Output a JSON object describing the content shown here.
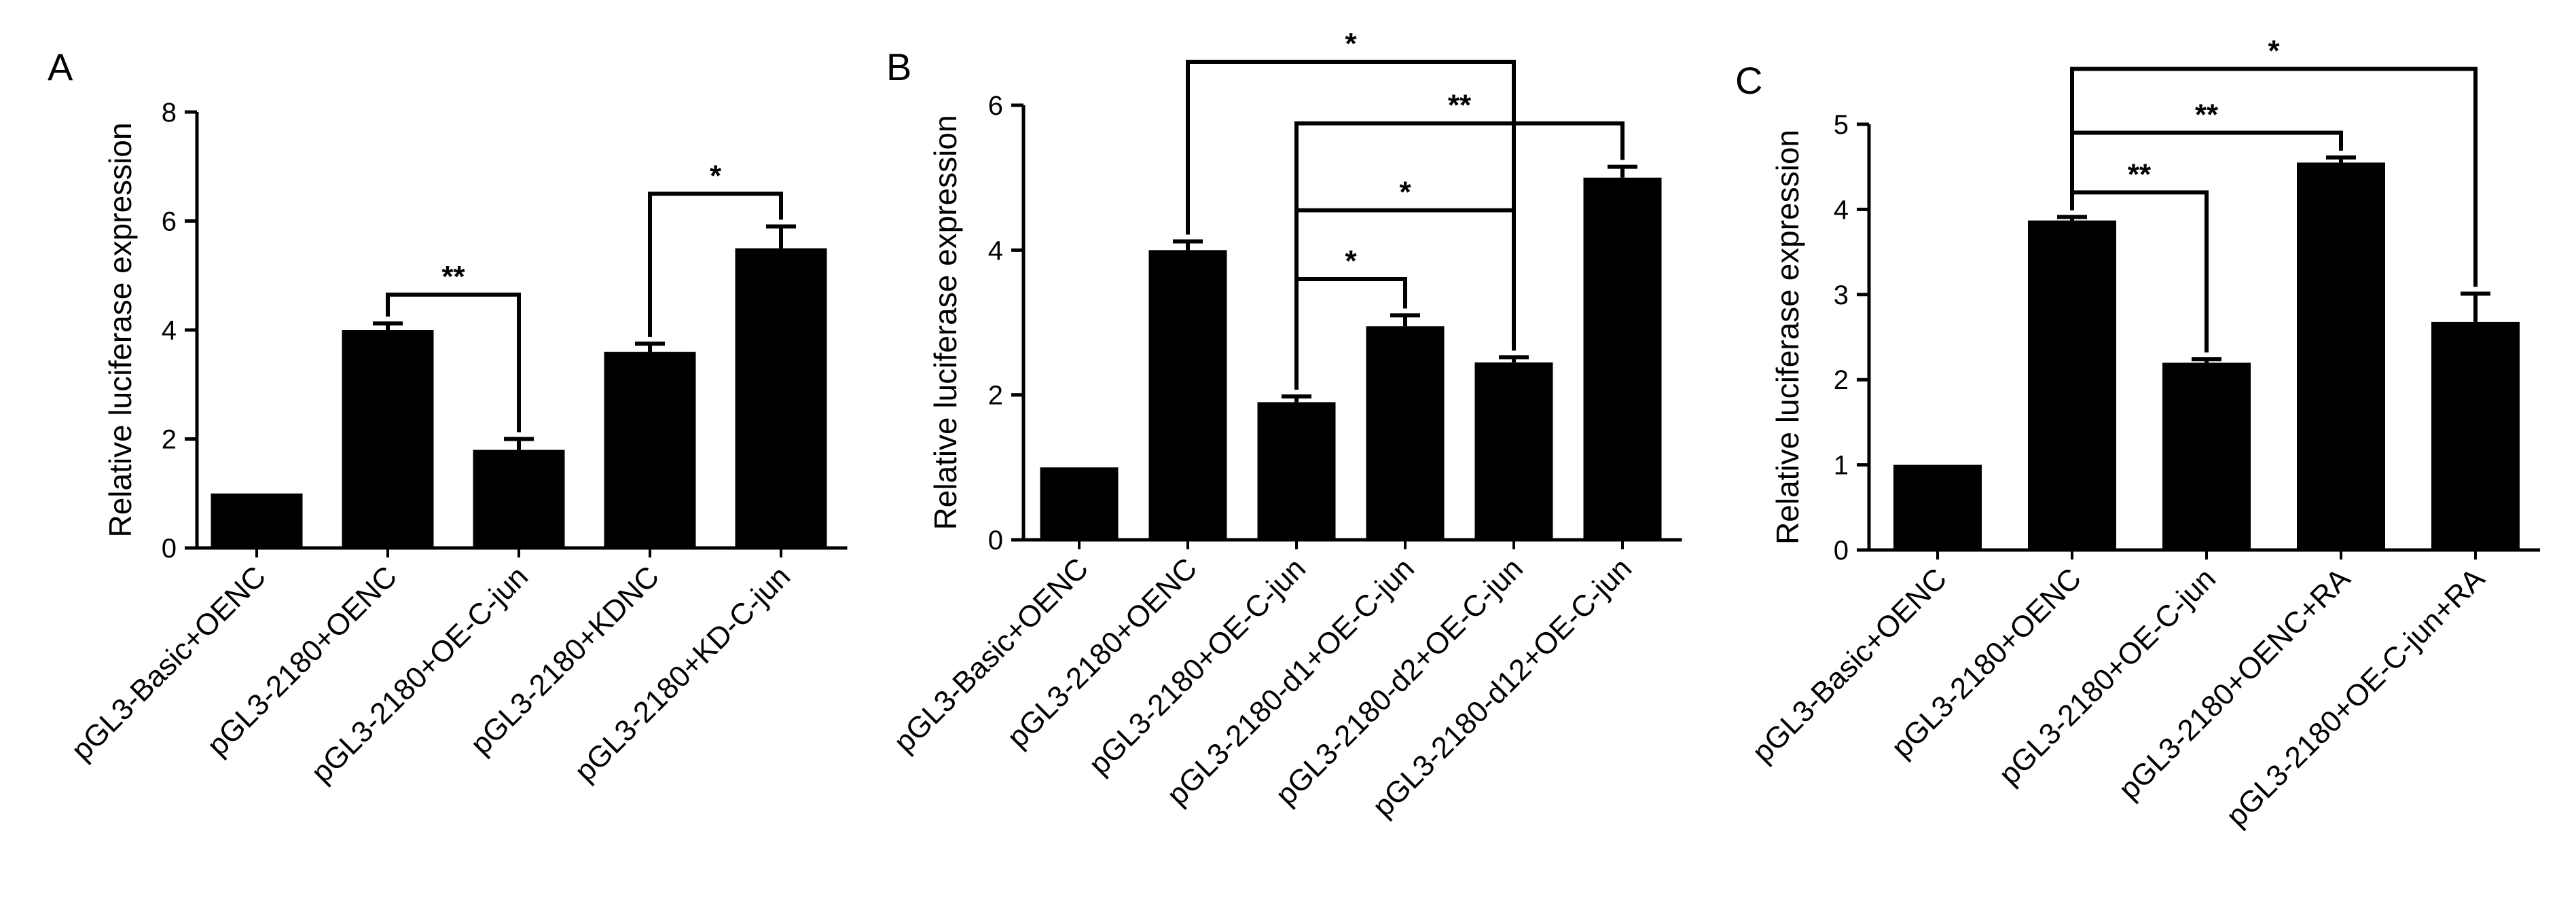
{
  "chart_data": [
    {
      "type": "bar",
      "panel": "A",
      "ylabel": "Relative luciferase expression",
      "ylim": [
        0,
        8
      ],
      "yticks": [
        0,
        2,
        4,
        6,
        8
      ],
      "categories": [
        "pGL3-Basic+OENC",
        "pGL3-2180+OENC",
        "pGL3-2180+OE-C-jun",
        "pGL3-2180+KDNC",
        "pGL3-2180+KD-C-jun"
      ],
      "values": [
        1.0,
        4.0,
        1.8,
        3.6,
        5.5
      ],
      "errors": [
        0.0,
        0.12,
        0.2,
        0.15,
        0.4
      ],
      "comparisons": [
        {
          "from": 1,
          "to": 2,
          "label": "**",
          "level": 4.65
        },
        {
          "from": 3,
          "to": 4,
          "label": "*",
          "level": 6.5
        }
      ]
    },
    {
      "type": "bar",
      "panel": "B",
      "ylabel": "Relative luciferase expression",
      "ylim": [
        0,
        6
      ],
      "yticks": [
        0,
        2,
        4,
        6
      ],
      "categories": [
        "pGL3-Basic+OENC",
        "pGL3-2180+OENC",
        "pGL3-2180+OE-C-jun",
        "pGL3-2180-d1+OE-C-jun",
        "pGL3-2180-d2+OE-C-jun",
        "pGL3-2180-d12+OE-C-jun"
      ],
      "values": [
        1.0,
        4.0,
        1.9,
        2.95,
        2.45,
        5.0
      ],
      "errors": [
        0.0,
        0.12,
        0.08,
        0.15,
        0.07,
        0.15
      ],
      "comparisons": [
        {
          "from": 1,
          "to": 4,
          "label": "*",
          "level": 6.6
        },
        {
          "from": 2,
          "to": 5,
          "label": "**",
          "level": 5.75
        },
        {
          "from": 2,
          "to": 4,
          "label": "*",
          "level": 4.55
        },
        {
          "from": 2,
          "to": 3,
          "label": "*",
          "level": 3.6
        }
      ]
    },
    {
      "type": "bar",
      "panel": "C",
      "ylabel": "Relative luciferase expression",
      "ylim": [
        0,
        5
      ],
      "yticks": [
        0,
        1,
        2,
        3,
        4,
        5
      ],
      "categories": [
        "pGL3-Basic+OENC",
        "pGL3-2180+OENC",
        "pGL3-2180+OE-C-jun",
        "pGL3-2180+OENC+RA",
        "pGL3-2180+OE-C-jun+RA"
      ],
      "values": [
        1.0,
        3.87,
        2.2,
        4.55,
        2.68
      ],
      "errors": [
        0.0,
        0.04,
        0.04,
        0.06,
        0.33
      ],
      "comparisons": [
        {
          "from": 1,
          "to": 4,
          "label": "*",
          "level": 5.65
        },
        {
          "from": 1,
          "to": 3,
          "label": "**",
          "level": 4.9
        },
        {
          "from": 1,
          "to": 2,
          "label": "**",
          "level": 4.2
        }
      ]
    }
  ]
}
